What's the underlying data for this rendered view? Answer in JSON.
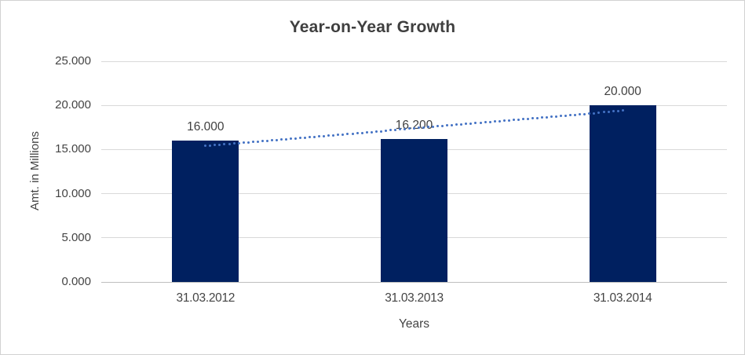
{
  "chart_data": {
    "type": "bar",
    "title": "Year-on-Year Growth",
    "categories": [
      "31.03.2012",
      "31.03.2013",
      "31.03.2014"
    ],
    "values": [
      16.0,
      16.2,
      20.0
    ],
    "data_labels": [
      "16.000",
      "16.200",
      "20.000"
    ],
    "xlabel": "Years",
    "ylabel": "Amt. in Millions",
    "ylim": [
      0,
      25
    ],
    "ytick_step": 5,
    "ytick_labels": [
      "0.000",
      "5.000",
      "10.000",
      "15.000",
      "20.000",
      "25.000"
    ],
    "grid": true,
    "legend": "none",
    "bar_color": "#002060",
    "trendline": {
      "type": "linear",
      "style": "dotted",
      "color": "#4472C4",
      "start_value": 15.4,
      "end_value": 19.4
    }
  }
}
